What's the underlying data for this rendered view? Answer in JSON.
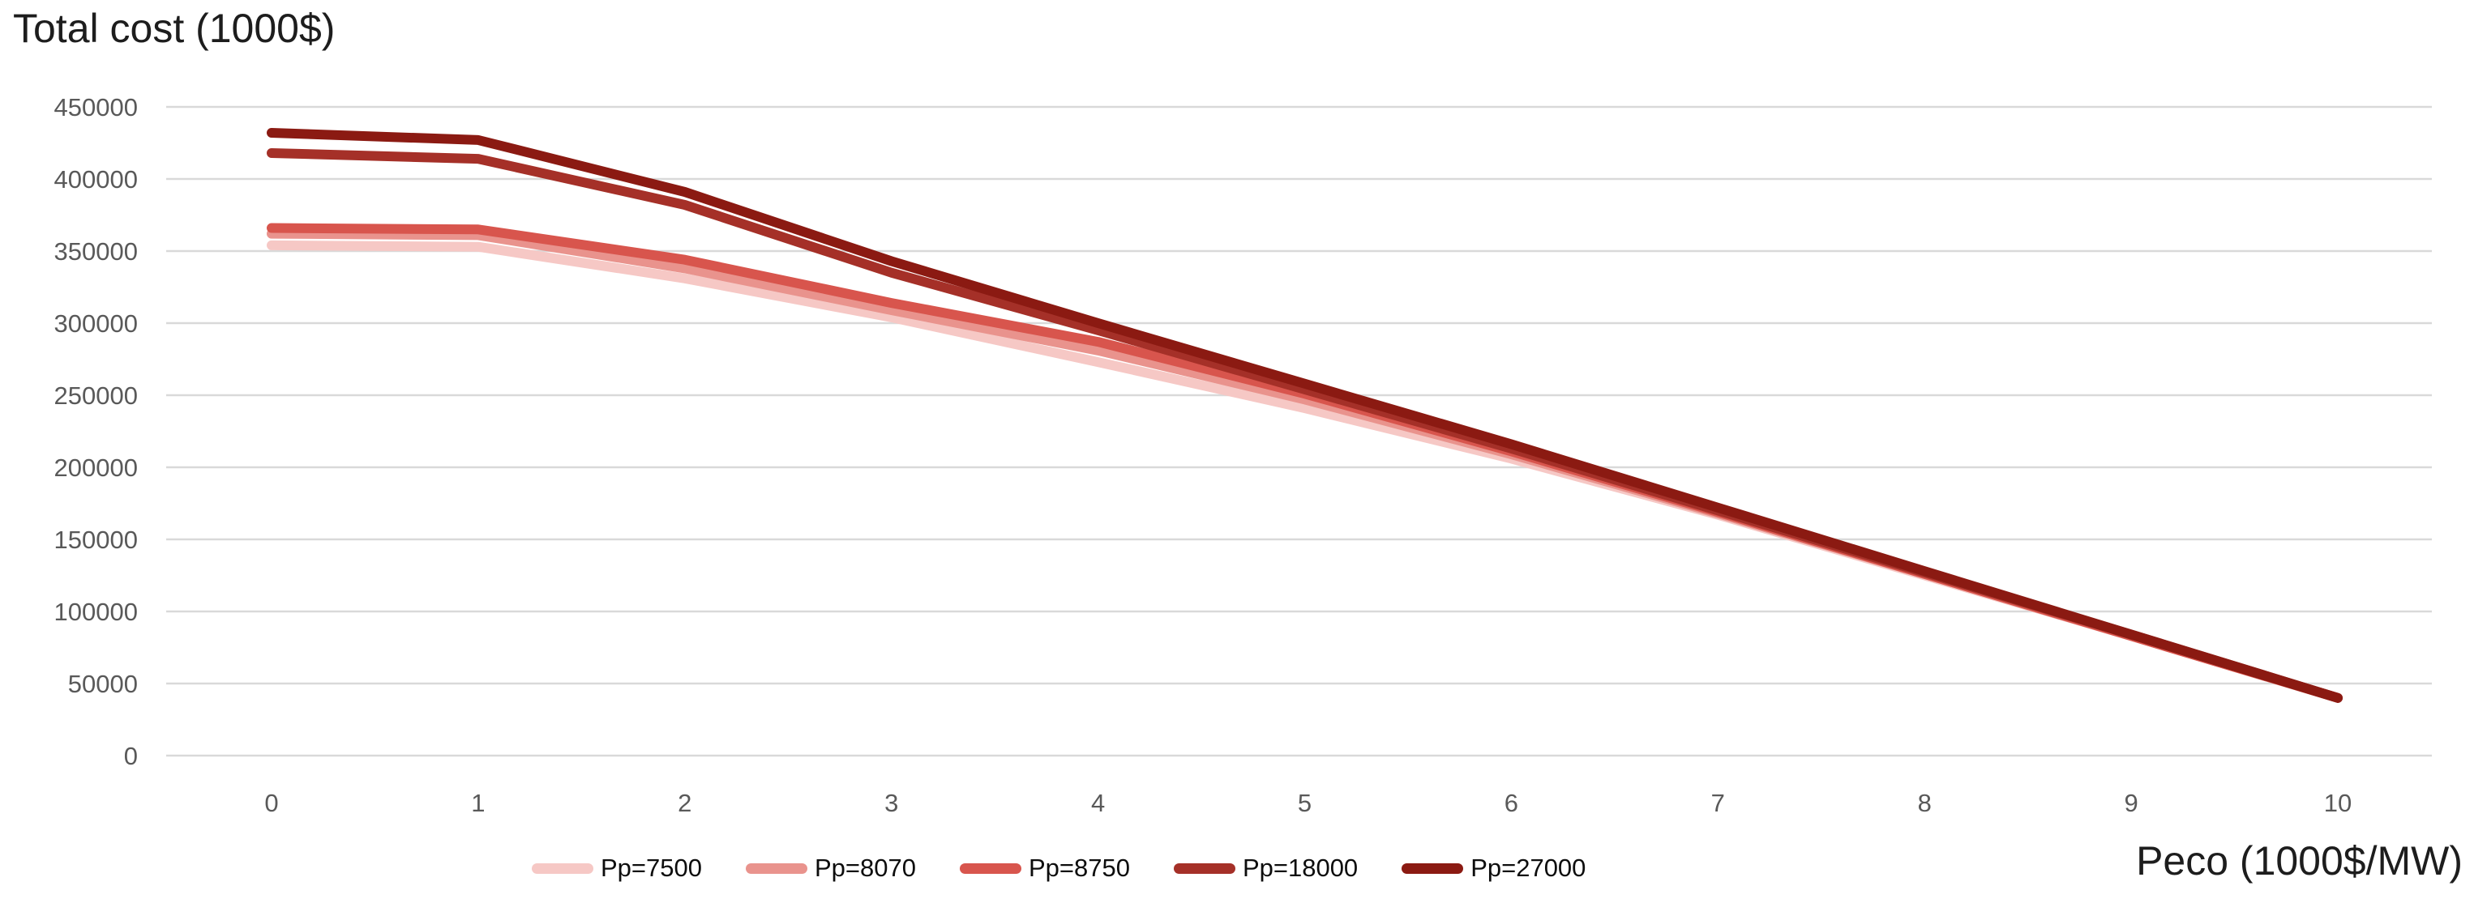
{
  "chart_data": {
    "type": "line",
    "title": "Total cost (1000$)",
    "xlabel": "Peco (1000$/MW)",
    "ylabel": "Total cost (1000$)",
    "grid": "horizontal-only",
    "legend_position": "bottom",
    "xlim": [
      0,
      10
    ],
    "ylim": [
      0,
      450000
    ],
    "x": [
      0,
      1,
      2,
      3,
      4,
      5,
      6,
      7,
      8,
      9,
      10
    ],
    "x_tick_labels": [
      "0",
      "1",
      "2",
      "3",
      "4",
      "5",
      "6",
      "7",
      "8",
      "9",
      "10"
    ],
    "y_ticks": [
      450000,
      400000,
      350000,
      300000,
      250000,
      200000,
      150000,
      100000,
      50000,
      0
    ],
    "y_tick_labels": [
      "450000",
      "400000",
      "350000",
      "300000",
      "250000",
      "200000",
      "150000",
      "100000",
      "50000",
      "0"
    ],
    "series": [
      {
        "name": "Pp=7500",
        "color": "#f6c8c5",
        "values": [
          354000,
          353000,
          331000,
          304000,
          273000,
          241000,
          206000,
          167000,
          125000,
          83000,
          40000
        ]
      },
      {
        "name": "Pp=8070",
        "color": "#e9938d",
        "values": [
          362000,
          361000,
          338000,
          309000,
          281000,
          247000,
          209000,
          168000,
          126000,
          83000,
          40000
        ]
      },
      {
        "name": "Pp=8750",
        "color": "#d8554d",
        "values": [
          366000,
          365000,
          344000,
          314000,
          287000,
          251000,
          211000,
          169000,
          126000,
          83000,
          40000
        ]
      },
      {
        "name": "Pp=18000",
        "color": "#a53028",
        "values": [
          418000,
          414000,
          382000,
          335000,
          295000,
          254000,
          213000,
          170000,
          127000,
          84000,
          40000
        ]
      },
      {
        "name": "Pp=27000",
        "color": "#8b1a12",
        "values": [
          432000,
          427000,
          391000,
          343000,
          300000,
          258000,
          216000,
          172000,
          128000,
          84000,
          40000
        ]
      }
    ]
  },
  "colors": {
    "background": "#ffffff",
    "gridline": "#d9d9d9",
    "tick_label": "#595959",
    "title_text": "#1d1d1d",
    "legend_text": "#0d0d0d"
  }
}
